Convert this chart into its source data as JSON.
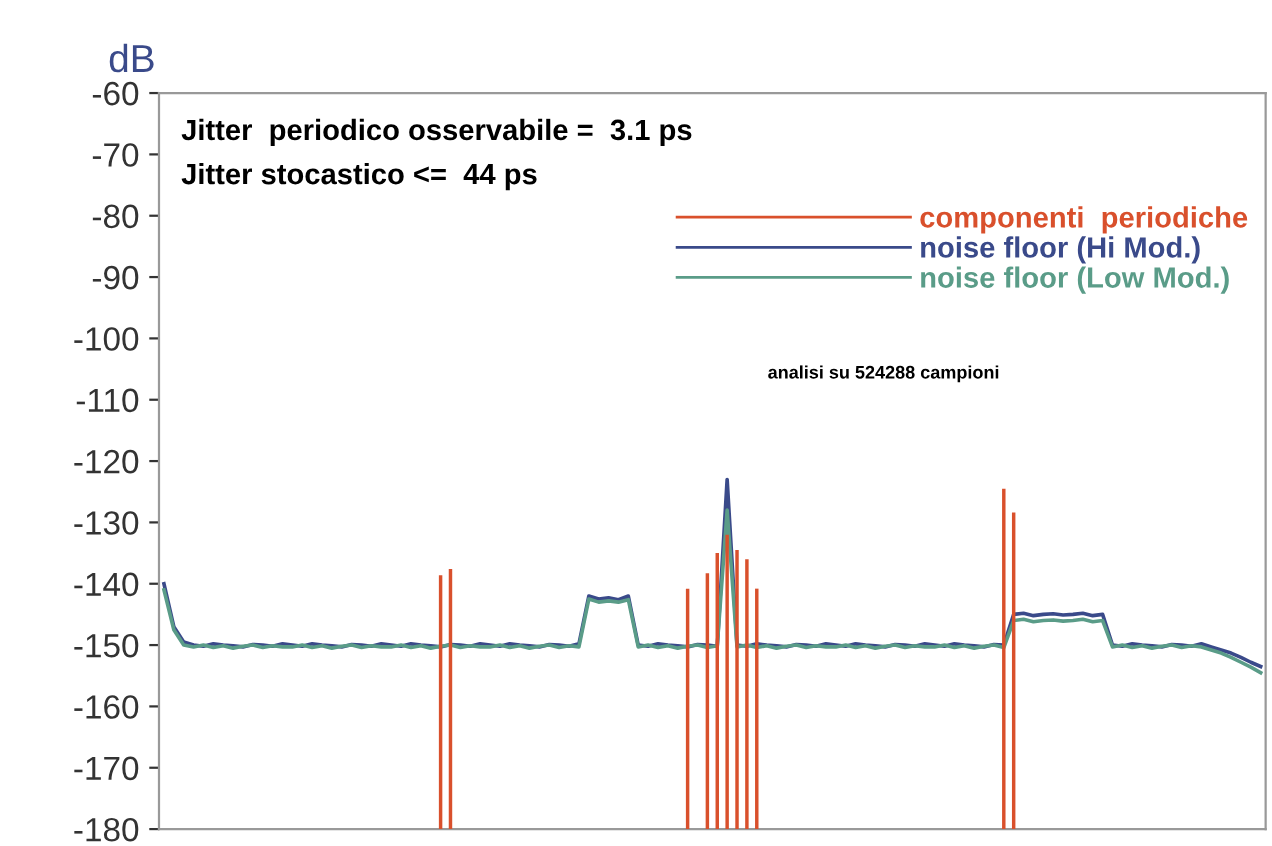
{
  "chart_data": {
    "type": "line",
    "ylabel": "dB",
    "categories": [
      null,
      null,
      null,
      null,
      null,
      null,
      null,
      null,
      null,
      null,
      null,
      null,
      null,
      null,
      null,
      null,
      null,
      null,
      null,
      null,
      null,
      null,
      null,
      null,
      null,
      null,
      null,
      null,
      null,
      null,
      null,
      null,
      null,
      null,
      null,
      null,
      null,
      null,
      null,
      null,
      null,
      null,
      null,
      null,
      null,
      null,
      null,
      null,
      null,
      null,
      null,
      null,
      null,
      null,
      null,
      null,
      null,
      null,
      null,
      null,
      null,
      null,
      null,
      null,
      null,
      null,
      null,
      null,
      null,
      null,
      null,
      null,
      null,
      null,
      null,
      null,
      null,
      null,
      null,
      null,
      null,
      null,
      null,
      null,
      null,
      null,
      null,
      null,
      null,
      null,
      null,
      null,
      null,
      null,
      null,
      null,
      null,
      null,
      null,
      null,
      null,
      null,
      null,
      null,
      null,
      null,
      null,
      null,
      null,
      null,
      null,
      null
    ],
    "series": [
      {
        "name": "componenti  periodiche",
        "type": "bar",
        "color": "#d9502c",
        "base": [
          null,
          null,
          null,
          null,
          null,
          null,
          null,
          null,
          null,
          null,
          null,
          null,
          null,
          null,
          null,
          null,
          null,
          null,
          null,
          null,
          null,
          null,
          null,
          null,
          null,
          null,
          null,
          null,
          -180,
          -180,
          null,
          null,
          null,
          null,
          null,
          null,
          null,
          null,
          null,
          null,
          null,
          null,
          null,
          null,
          null,
          null,
          null,
          null,
          null,
          null,
          null,
          null,
          null,
          -180,
          null,
          -180,
          -180,
          -180,
          -180,
          -180,
          -180,
          null,
          null,
          null,
          null,
          null,
          null,
          null,
          null,
          null,
          null,
          null,
          null,
          null,
          null,
          null,
          null,
          null,
          null,
          null,
          null,
          null,
          null,
          null,
          null,
          -180,
          -180,
          null,
          null,
          null,
          null,
          null,
          null,
          null,
          null,
          null,
          null,
          null,
          null,
          null,
          null,
          null,
          null,
          null,
          null,
          null,
          null,
          null,
          null,
          null,
          null,
          null
        ],
        "values": [
          null,
          null,
          null,
          null,
          null,
          null,
          null,
          null,
          null,
          null,
          null,
          null,
          null,
          null,
          null,
          null,
          null,
          null,
          null,
          null,
          null,
          null,
          null,
          null,
          null,
          null,
          null,
          null,
          41.4,
          42.4,
          null,
          null,
          null,
          null,
          null,
          null,
          null,
          null,
          null,
          null,
          null,
          null,
          null,
          null,
          null,
          null,
          null,
          null,
          null,
          null,
          null,
          null,
          null,
          39.2,
          null,
          41.7,
          45,
          48,
          45.5,
          44,
          39.2,
          null,
          null,
          null,
          null,
          null,
          null,
          null,
          null,
          null,
          null,
          null,
          null,
          null,
          null,
          null,
          null,
          null,
          null,
          null,
          null,
          null,
          null,
          null,
          null,
          55.5,
          51.6,
          null,
          null,
          null,
          null,
          null,
          null,
          null,
          null,
          null,
          null,
          null,
          null,
          null,
          null,
          null,
          null,
          null,
          null,
          null,
          null,
          null,
          null,
          null,
          null,
          null
        ]
      },
      {
        "name": "noise floor (Hi Mod.)",
        "color": "#3a4a8a",
        "values": [
          -140,
          -147,
          -149.5,
          -150,
          -150.2,
          -149.8,
          -150,
          -150.1,
          -150.3,
          -149.9,
          -150,
          -150.2,
          -149.8,
          -150,
          -150.2,
          -149.8,
          -150,
          -150.1,
          -150.3,
          -149.9,
          -150,
          -150.2,
          -149.8,
          -150,
          -150.2,
          -149.8,
          -150,
          -150.1,
          -150.3,
          -149.9,
          -150,
          -150.2,
          -149.8,
          -150,
          -150.2,
          -149.8,
          -150,
          -150.1,
          -150.3,
          -149.9,
          -150,
          -150.2,
          -149.8,
          -142,
          -142.5,
          -142.3,
          -142.6,
          -142,
          -150,
          -150.2,
          -149.8,
          -150,
          -150.1,
          -150.3,
          -149.9,
          -150,
          -150.2,
          -123,
          -150,
          -150.2,
          -149.8,
          -150,
          -150.1,
          -150.3,
          -149.9,
          -150,
          -150.2,
          -149.8,
          -150,
          -150.2,
          -149.8,
          -150,
          -150.1,
          -150.3,
          -149.9,
          -150,
          -150.2,
          -149.8,
          -150,
          -150.2,
          -149.8,
          -150,
          -150.1,
          -150.3,
          -149.9,
          -150,
          -145,
          -144.8,
          -145.2,
          -145,
          -144.9,
          -145.1,
          -145,
          -144.8,
          -145.2,
          -145,
          -150,
          -150.2,
          -149.8,
          -150,
          -150.1,
          -150.3,
          -149.9,
          -150,
          -150.2,
          -149.8,
          -150.3,
          -150.8,
          -151.3,
          -152,
          -152.8,
          -153.5
        ]
      },
      {
        "name": "noise floor (Low Mod.)",
        "color": "#5a9c88",
        "values": [
          -141,
          -147.5,
          -150,
          -150.3,
          -150,
          -150.4,
          -150.1,
          -150.5,
          -150.2,
          -150,
          -150.4,
          -150.1,
          -150.3,
          -150.3,
          -150,
          -150.4,
          -150.1,
          -150.5,
          -150.2,
          -150,
          -150.4,
          -150.1,
          -150.3,
          -150.3,
          -150,
          -150.4,
          -150.1,
          -150.5,
          -150.2,
          -150,
          -150.4,
          -150.1,
          -150.3,
          -150.3,
          -150,
          -150.4,
          -150.1,
          -150.5,
          -150.2,
          -150,
          -150.4,
          -150.1,
          -150.3,
          -142.5,
          -143,
          -142.8,
          -143,
          -142.6,
          -150.3,
          -150,
          -150.4,
          -150.1,
          -150.5,
          -150.2,
          -150,
          -150.4,
          -150.1,
          -128,
          -150.3,
          -150,
          -150.4,
          -150.1,
          -150.5,
          -150.2,
          -150,
          -150.4,
          -150.1,
          -150.3,
          -150.3,
          -150,
          -150.4,
          -150.1,
          -150.5,
          -150.2,
          -150,
          -150.4,
          -150.1,
          -150.3,
          -150.3,
          -150,
          -150.4,
          -150.1,
          -150.5,
          -150.2,
          -150,
          -150.4,
          -146,
          -145.8,
          -146.2,
          -146,
          -145.9,
          -146.1,
          -146,
          -145.8,
          -146.2,
          -146,
          -150.3,
          -150,
          -150.4,
          -150.1,
          -150.5,
          -150.2,
          -150,
          -150.4,
          -150.1,
          -150.3,
          -150.8,
          -151.3,
          -152,
          -152.8,
          -153.6,
          -154.5
        ]
      }
    ],
    "ylim": [
      -180,
      -60
    ],
    "yticks": [
      -60,
      -70,
      -80,
      -90,
      -100,
      -110,
      -120,
      -130,
      -140,
      -150,
      -160,
      -170,
      -180
    ],
    "tick_labels": "y",
    "grid": false,
    "legend": "top right",
    "annotations": [
      "Jitter  periodico osservabile =  3.1 ps",
      "Jitter stocastico <=  44 ps",
      "analisi su 524288 campioni"
    ]
  }
}
